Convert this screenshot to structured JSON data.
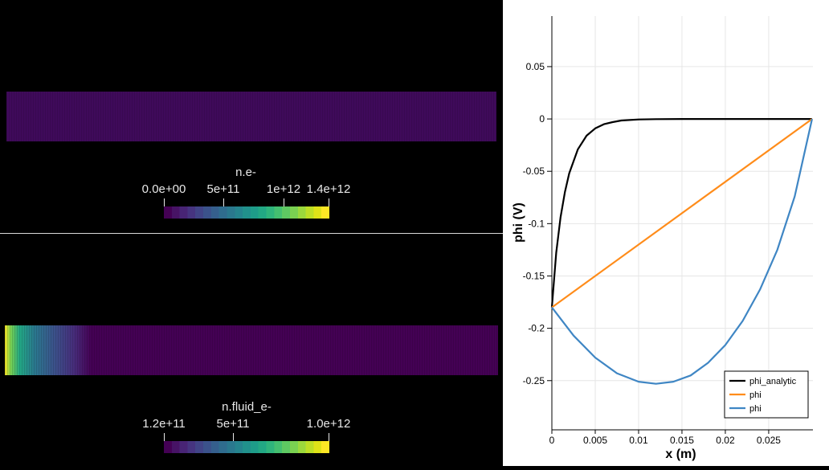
{
  "colors": {
    "viridis_dark": "#440154",
    "field_uniform": "#3f0a5a",
    "analytic_line": "#000000",
    "phi_orange": "#ff8c1a",
    "phi_blue": "#3f86c4"
  },
  "views": {
    "top": {
      "field_name": "n.e-",
      "colorbar_ticks": [
        "0.0e+00",
        "5e+11",
        "1e+12",
        "1.4e+12"
      ]
    },
    "bottom": {
      "field_name": "n.fluid_e-",
      "colorbar_ticks": [
        "1.2e+11",
        "5e+11",
        "1.0e+12"
      ]
    }
  },
  "chart_data": {
    "type": "line",
    "xlabel": "x (m)",
    "ylabel": "phi (V)",
    "xlim": [
      0,
      0.03
    ],
    "ylim": [
      -0.3,
      0.1
    ],
    "x_ticks": [
      "0",
      "0.005",
      "0.01",
      "0.015",
      "0.02",
      "0.025"
    ],
    "y_ticks": [
      "0.05",
      "0",
      "-0.05",
      "-0.1",
      "-0.15",
      "-0.2",
      "-0.25"
    ],
    "grid": true,
    "legend_position": "bottom-right",
    "series": [
      {
        "name": "phi_analytic",
        "color": "#000000",
        "x": [
          0,
          0.0005,
          0.001,
          0.0015,
          0.002,
          0.003,
          0.004,
          0.005,
          0.006,
          0.007,
          0.008,
          0.01,
          0.012,
          0.015,
          0.02,
          0.025,
          0.03
        ],
        "y": [
          -0.18,
          -0.128,
          -0.094,
          -0.07,
          -0.052,
          -0.029,
          -0.016,
          -0.009,
          -0.005,
          -0.003,
          -0.0015,
          -0.0005,
          -0.0002,
          0,
          0,
          0,
          0
        ]
      },
      {
        "name": "phi",
        "color": "#ff8c1a",
        "x": [
          0,
          0.03
        ],
        "y": [
          -0.18,
          0
        ]
      },
      {
        "name": "phi",
        "color": "#3f86c4",
        "x": [
          0,
          0.0025,
          0.005,
          0.0075,
          0.01,
          0.012,
          0.014,
          0.016,
          0.018,
          0.02,
          0.022,
          0.024,
          0.026,
          0.028,
          0.03
        ],
        "y": [
          -0.18,
          -0.207,
          -0.228,
          -0.243,
          -0.251,
          -0.253,
          -0.251,
          -0.245,
          -0.233,
          -0.216,
          -0.193,
          -0.163,
          -0.125,
          -0.074,
          0
        ]
      }
    ]
  }
}
